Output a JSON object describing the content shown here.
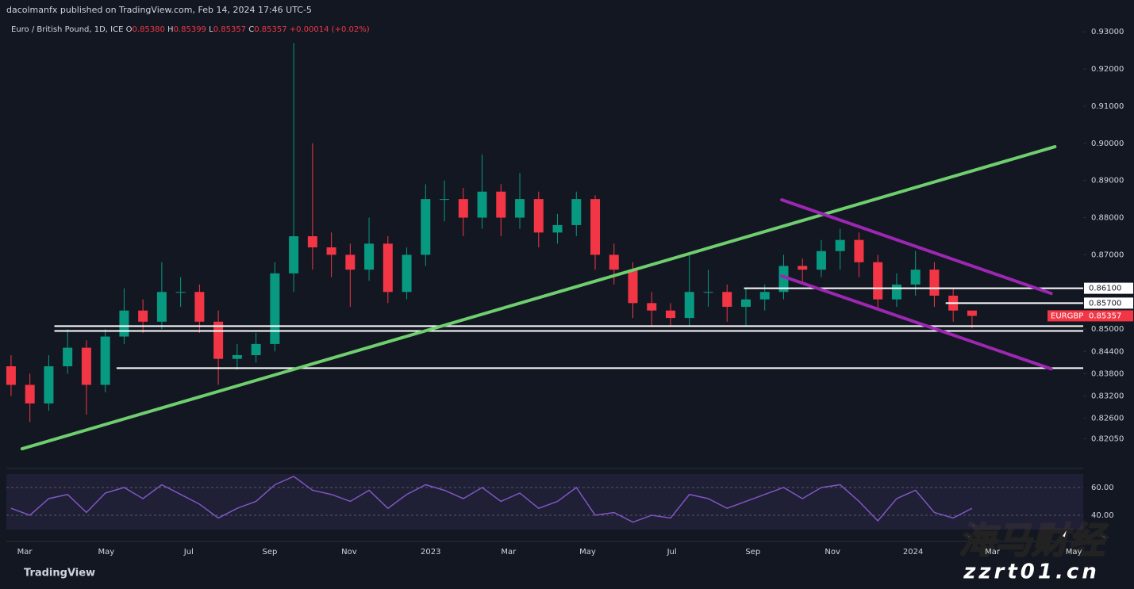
{
  "header": {
    "publisher": "dacolmanfx published on TradingView.com, Feb 14, 2024 17:46 UTC-5"
  },
  "chart_data": {
    "type": "candlestick",
    "symbol": "Euro / British Pound, 1D, ICE",
    "ohlc_labels": [
      {
        "label": "O",
        "value": "0.85380"
      },
      {
        "label": "H",
        "value": "0.85399"
      },
      {
        "label": "L",
        "value": "0.85357"
      },
      {
        "label": "C",
        "value": "0.85357"
      }
    ],
    "change": "+0.00014 (+0.02%)",
    "up_color": "#089981",
    "down_color": "#f23645",
    "open": [
      0.84,
      0.835,
      0.83,
      0.84,
      0.845,
      0.835,
      0.848,
      0.855,
      0.852,
      0.86,
      0.86,
      0.852,
      0.842,
      0.843,
      0.846,
      0.865,
      0.875,
      0.872,
      0.87,
      0.866,
      0.873,
      0.86,
      0.87,
      0.885,
      0.885,
      0.88,
      0.887,
      0.88,
      0.885,
      0.876,
      0.878,
      0.885,
      0.87,
      0.866,
      0.857,
      0.855,
      0.853,
      0.86,
      0.86,
      0.856,
      0.858,
      0.86,
      0.867,
      0.866,
      0.871,
      0.874,
      0.868,
      0.858,
      0.862,
      0.866,
      0.859,
      0.855
    ],
    "high": [
      0.843,
      0.838,
      0.843,
      0.85,
      0.847,
      0.85,
      0.861,
      0.858,
      0.868,
      0.864,
      0.862,
      0.855,
      0.846,
      0.849,
      0.868,
      0.927,
      0.9,
      0.876,
      0.873,
      0.88,
      0.875,
      0.872,
      0.889,
      0.89,
      0.888,
      0.897,
      0.889,
      0.892,
      0.887,
      0.881,
      0.887,
      0.886,
      0.873,
      0.868,
      0.86,
      0.857,
      0.87,
      0.866,
      0.862,
      0.861,
      0.862,
      0.87,
      0.869,
      0.874,
      0.877,
      0.876,
      0.87,
      0.865,
      0.871,
      0.868,
      0.861,
      0.854
    ],
    "low": [
      0.832,
      0.825,
      0.828,
      0.838,
      0.827,
      0.833,
      0.846,
      0.849,
      0.85,
      0.856,
      0.849,
      0.835,
      0.839,
      0.841,
      0.844,
      0.86,
      0.866,
      0.864,
      0.856,
      0.863,
      0.857,
      0.858,
      0.867,
      0.879,
      0.875,
      0.877,
      0.875,
      0.877,
      0.872,
      0.873,
      0.875,
      0.866,
      0.862,
      0.853,
      0.851,
      0.851,
      0.851,
      0.856,
      0.852,
      0.851,
      0.855,
      0.858,
      0.862,
      0.864,
      0.866,
      0.864,
      0.855,
      0.856,
      0.859,
      0.856,
      0.852,
      0.8502
    ],
    "close": [
      0.835,
      0.83,
      0.84,
      0.845,
      0.835,
      0.848,
      0.855,
      0.852,
      0.86,
      0.86,
      0.852,
      0.842,
      0.843,
      0.846,
      0.865,
      0.875,
      0.872,
      0.87,
      0.866,
      0.873,
      0.86,
      0.87,
      0.885,
      0.885,
      0.88,
      0.887,
      0.88,
      0.885,
      0.876,
      0.878,
      0.885,
      0.87,
      0.866,
      0.857,
      0.855,
      0.853,
      0.86,
      0.86,
      0.856,
      0.858,
      0.86,
      0.867,
      0.866,
      0.871,
      0.874,
      0.868,
      0.858,
      0.862,
      0.866,
      0.859,
      0.855,
      0.85357
    ],
    "xlim": [
      -0.25,
      56.9
    ],
    "xticks": [
      {
        "value": 0.72,
        "label": "Mar"
      },
      {
        "value": 5.05,
        "label": "May"
      },
      {
        "value": 9.43,
        "label": "Jul"
      },
      {
        "value": 13.73,
        "label": "Sep"
      },
      {
        "value": 17.94,
        "label": "Nov"
      },
      {
        "value": 22.27,
        "label": "2023"
      },
      {
        "value": 26.4,
        "label": "Mar"
      },
      {
        "value": 30.6,
        "label": "May"
      },
      {
        "value": 35.07,
        "label": "Jul"
      },
      {
        "value": 39.37,
        "label": "Sep"
      },
      {
        "value": 43.6,
        "label": "Nov"
      },
      {
        "value": 47.87,
        "label": "2024"
      },
      {
        "value": 52.08,
        "label": "Mar"
      },
      {
        "value": 56.4,
        "label": "May"
      }
    ],
    "ylim": [
      0.8127,
      0.9326
    ],
    "yticks": [
      {
        "value": 0.93,
        "label": "0.93000"
      },
      {
        "value": 0.92,
        "label": "0.92000"
      },
      {
        "value": 0.91,
        "label": "0.91000"
      },
      {
        "value": 0.9,
        "label": "0.90000"
      },
      {
        "value": 0.89,
        "label": "0.89000"
      },
      {
        "value": 0.88,
        "label": "0.88000"
      },
      {
        "value": 0.87,
        "label": "0.87000"
      },
      {
        "value": 0.85,
        "label": "0.85000"
      },
      {
        "value": 0.844,
        "label": "0.84400"
      },
      {
        "value": 0.838,
        "label": "0.83800"
      },
      {
        "value": 0.832,
        "label": "0.83200"
      },
      {
        "value": 0.826,
        "label": "0.82600"
      },
      {
        "value": 0.8205,
        "label": "0.82050"
      }
    ],
    "trendlines": [
      {
        "color": "#6fcf6f",
        "points": [
          [
            0.59,
            0.8178
          ],
          [
            55.4,
            0.8991
          ]
        ]
      },
      {
        "color": "#9c27b0",
        "points": [
          [
            40.9,
            0.8848
          ],
          [
            55.2,
            0.8596
          ]
        ]
      },
      {
        "color": "#9c27b0",
        "points": [
          [
            40.9,
            0.8643
          ],
          [
            55.2,
            0.8393
          ]
        ]
      }
    ],
    "levels": [
      {
        "value": 0.861,
        "from": 38.9,
        "label": "0.86100"
      },
      {
        "value": 0.857,
        "from": 49.6,
        "label": "0.85700"
      },
      {
        "value": 0.8508,
        "from": 2.3
      },
      {
        "value": 0.8495,
        "from": 2.3
      },
      {
        "value": 0.8395,
        "from": 5.6
      }
    ],
    "last_price": {
      "symbol": "EURGBP",
      "value": 0.85357,
      "label": "0.85357",
      "color": "#f23645"
    },
    "rsi": {
      "color": "#7e57c2",
      "values": [
        45,
        40,
        52,
        55,
        42,
        56,
        60,
        52,
        62,
        55,
        48,
        38,
        45,
        50,
        62,
        68,
        58,
        55,
        50,
        58,
        45,
        55,
        62,
        58,
        52,
        60,
        50,
        56,
        45,
        50,
        60,
        40,
        42,
        35,
        40,
        38,
        55,
        52,
        45,
        50,
        55,
        60,
        52,
        60,
        62,
        50,
        36,
        52,
        58,
        42,
        38,
        45
      ],
      "ylim": [
        29.7,
        69.7
      ],
      "yticks": [
        {
          "value": 60,
          "label": "60.00"
        },
        {
          "value": 40,
          "label": "40.00"
        }
      ]
    }
  },
  "footer": {
    "brand": "TradingView",
    "watermark": "海马财经",
    "watermark_url": "zzrt01.cn"
  }
}
